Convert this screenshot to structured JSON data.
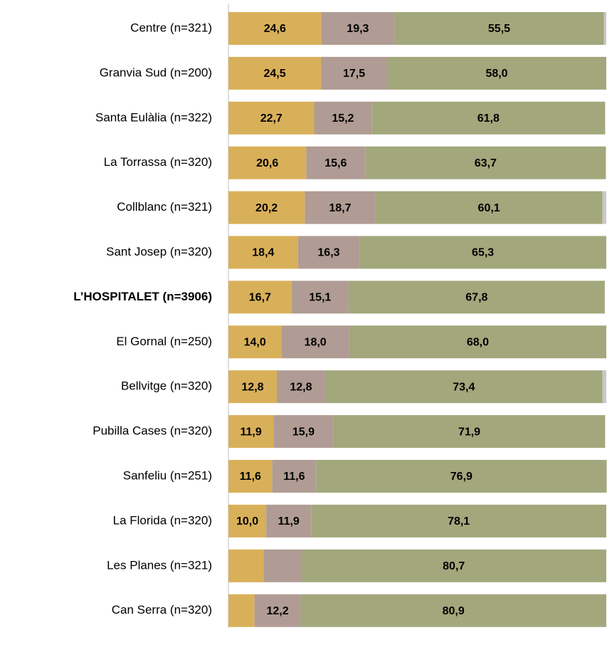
{
  "chart_data": {
    "type": "stacked_bar_horizontal",
    "categories": [
      "Centre (n=321)",
      "Granvia Sud (n=200)",
      "Santa Eulàlia (n=322)",
      "La Torrassa (n=320)",
      "Collblanc (n=321)",
      "Sant Josep (n=320)",
      "L’HOSPITALET (n=3906)",
      "El Gornal (n=250)",
      "Bellvitge (n=320)",
      "Pubilla Cases (n=320)",
      "Sanfeliu (n=251)",
      "La Florida (n=320)",
      "Les Planes (n=321)",
      "Can Serra (n=320)"
    ],
    "bold_category_index": 6,
    "xlim": [
      0,
      100
    ],
    "series": [
      {
        "color": "#d9b05a",
        "values": [
          24.6,
          24.5,
          22.7,
          20.6,
          20.2,
          18.4,
          16.7,
          14.0,
          12.8,
          11.9,
          11.6,
          10.0,
          9.3,
          6.9
        ],
        "value_labels": [
          "24,6",
          "24,5",
          "22,7",
          "20,6",
          "20,2",
          "18,4",
          "16,7",
          "14,0",
          "12,8",
          "11,9",
          "11,6",
          "10,0",
          null,
          null
        ]
      },
      {
        "color": "#b09c94",
        "values": [
          19.3,
          17.5,
          15.2,
          15.6,
          18.7,
          16.3,
          15.1,
          18.0,
          12.8,
          15.9,
          11.6,
          11.9,
          10.0,
          12.2
        ],
        "value_labels": [
          "19,3",
          "17,5",
          "15,2",
          "15,6",
          "18,7",
          "16,3",
          "15,1",
          "18,0",
          "12,8",
          "15,9",
          "11,6",
          "11,9",
          null,
          "12,2"
        ]
      },
      {
        "color": "#a3a77c",
        "values": [
          55.5,
          58.0,
          61.8,
          63.7,
          60.1,
          65.3,
          67.8,
          68.0,
          73.4,
          71.9,
          76.9,
          78.1,
          80.7,
          80.9
        ],
        "value_labels": [
          "55,5",
          "58,0",
          "61,8",
          "63,7",
          "60,1",
          "65,3",
          "67,8",
          "68,0",
          "73,4",
          "71,9",
          "76,9",
          "78,1",
          "80,7",
          "80,9"
        ]
      },
      {
        "color": "#c8c8c8",
        "values": [
          0.6,
          null,
          null,
          null,
          1.0,
          null,
          null,
          null,
          1.0,
          null,
          null,
          null,
          null,
          null
        ]
      }
    ]
  }
}
